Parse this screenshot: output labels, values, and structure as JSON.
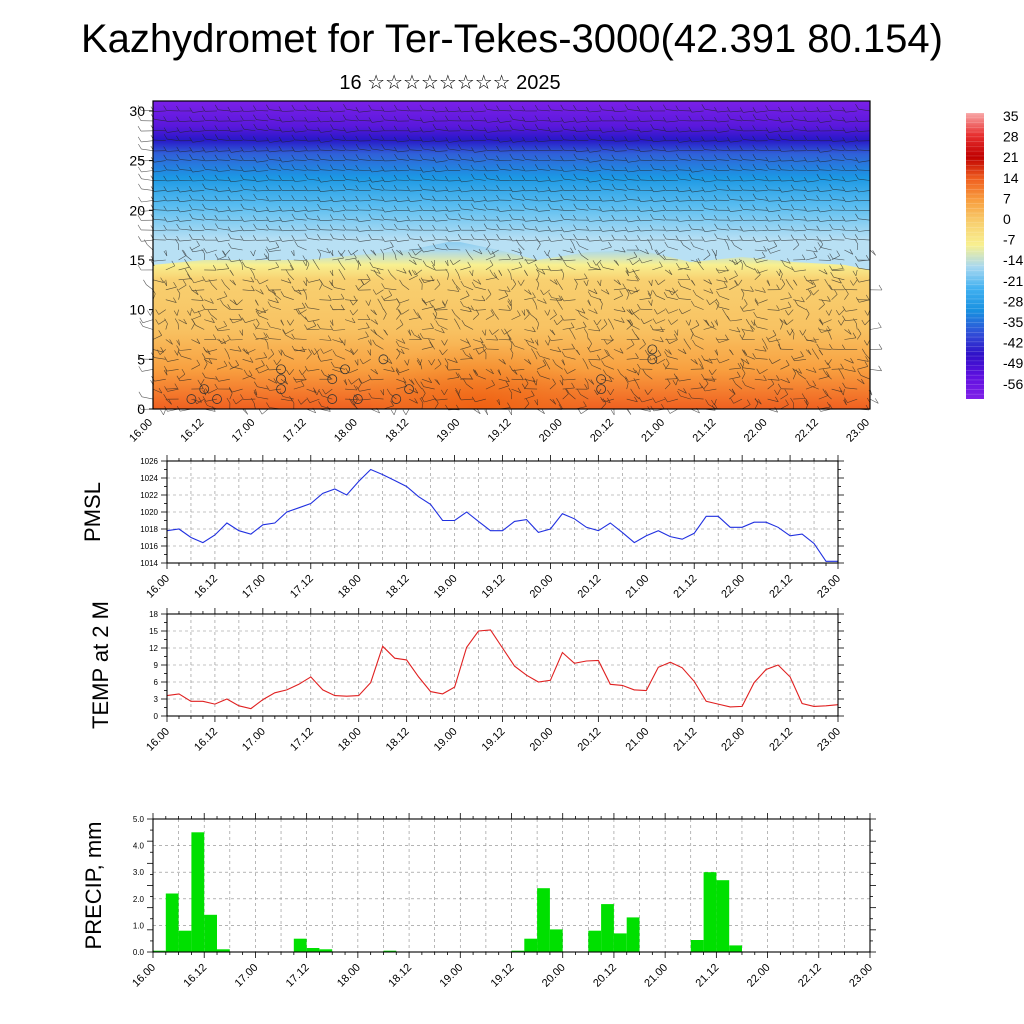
{
  "header": {
    "title": "Kazhydromet for Ter-Tekes-3000(42.391 80.154)",
    "subtitle": "16 ☆☆☆☆☆☆☆☆ 2025"
  },
  "colors": {
    "pmsl_line": "#2030e0",
    "temp_line": "#e02020",
    "precip_bar": "#00e000",
    "frame": "#000000",
    "grid": "#888888"
  },
  "chart_data": [
    {
      "type": "heatmap",
      "name": "cross-section",
      "title": "",
      "ylim": [
        0,
        31
      ],
      "yticks": [
        0,
        5,
        10,
        15,
        20,
        25,
        30
      ],
      "x_labels": [
        "16.00",
        "16.12",
        "17.00",
        "17.12",
        "18.00",
        "18.12",
        "19.00",
        "19.12",
        "20.00",
        "20.12",
        "21.00",
        "21.12",
        "22.00",
        "22.12",
        "23.00"
      ],
      "colorbar": {
        "labels": [
          "35",
          "28",
          "21",
          "14",
          "7",
          "0",
          "-7",
          "-14",
          "-21",
          "-28",
          "-35",
          "-42",
          "-49",
          "-56"
        ],
        "colors": [
          "#f8a8a8",
          "#e83030",
          "#c00000",
          "#f06020",
          "#f8a040",
          "#f8d070",
          "#f8f090",
          "#a8d8f0",
          "#40b0f0",
          "#1890e0",
          "#3050d8",
          "#3010c8",
          "#6010e0",
          "#8020e8"
        ]
      },
      "temperature_profile": {
        "heights": [
          0,
          4,
          8,
          13,
          16,
          19,
          22,
          24.5,
          26,
          28,
          31
        ],
        "values_c": [
          14,
          7,
          2,
          0,
          -14,
          -21,
          -28,
          -35,
          -49,
          -56,
          -56
        ]
      },
      "freezing_level": [
        {
          "x": 0,
          "y": 14.5
        },
        {
          "x": 4,
          "y": 15
        },
        {
          "x": 8,
          "y": 15
        },
        {
          "x": 12,
          "y": 15
        },
        {
          "x": 16,
          "y": 15.5
        },
        {
          "x": 20,
          "y": 16
        },
        {
          "x": 23,
          "y": 16.8
        },
        {
          "x": 24,
          "y": 16.8
        },
        {
          "x": 27,
          "y": 16
        },
        {
          "x": 30,
          "y": 15
        },
        {
          "x": 34,
          "y": 15.8
        },
        {
          "x": 38,
          "y": 16
        },
        {
          "x": 42,
          "y": 14.8
        },
        {
          "x": 46,
          "y": 15.3
        },
        {
          "x": 50,
          "y": 14.8
        },
        {
          "x": 54,
          "y": 14.5
        },
        {
          "x": 56,
          "y": 14
        }
      ]
    },
    {
      "type": "line",
      "name": "pmsl",
      "ylabel": "PMSL",
      "ylim": [
        1014,
        1026
      ],
      "yticks": [
        1014,
        1016,
        1018,
        1020,
        1022,
        1024,
        1026
      ],
      "x_labels": [
        "16.00",
        "16.12",
        "17.00",
        "17.12",
        "18.00",
        "18.12",
        "19.00",
        "19.12",
        "20.00",
        "20.12",
        "21.00",
        "21.12",
        "22.00",
        "22.12",
        "23.00"
      ],
      "series": [
        {
          "values": [
            1017.8,
            1018.0,
            1017.0,
            1016.4,
            1017.3,
            1018.7,
            1017.8,
            1017.4,
            1018.5,
            1018.7,
            1020.0,
            1020.5,
            1021.0,
            1022.2,
            1022.7,
            1022.0,
            1023.6,
            1025.0,
            1024.4,
            1023.7,
            1023.0,
            1021.8,
            1020.9,
            1019.0,
            1019.0,
            1020.0,
            1018.9,
            1017.8,
            1017.8,
            1018.9,
            1019.1,
            1017.6,
            1018.0,
            1019.8,
            1019.2,
            1018.2,
            1017.8,
            1018.7,
            1017.6,
            1016.4,
            1017.2,
            1017.8,
            1017.1,
            1016.8,
            1017.5,
            1019.5,
            1019.5,
            1018.2,
            1018.2,
            1018.8,
            1018.8,
            1018.2,
            1017.2,
            1017.4,
            1016.3,
            1014.2,
            1014.2
          ]
        }
      ]
    },
    {
      "type": "line",
      "name": "temp",
      "ylabel": "TEMP at 2 M",
      "ylim": [
        0,
        18
      ],
      "yticks": [
        0,
        3,
        6,
        9,
        12,
        15,
        18
      ],
      "x_labels": [
        "16.00",
        "16.12",
        "17.00",
        "17.12",
        "18.00",
        "18.12",
        "19.00",
        "19.12",
        "20.00",
        "20.12",
        "21.00",
        "21.12",
        "22.00",
        "22.12",
        "23.00"
      ],
      "series": [
        {
          "values": [
            3.6,
            3.9,
            2.6,
            2.6,
            2.1,
            3.0,
            1.8,
            1.3,
            2.9,
            4.1,
            4.6,
            5.6,
            6.9,
            4.6,
            3.6,
            3.5,
            3.6,
            5.9,
            12.3,
            10.2,
            9.9,
            6.9,
            4.3,
            3.9,
            5.1,
            12.1,
            15.0,
            15.2,
            12.0,
            8.8,
            7.2,
            6.0,
            6.3,
            11.2,
            9.3,
            9.7,
            9.8,
            5.6,
            5.4,
            4.6,
            4.5,
            8.6,
            9.5,
            8.5,
            6.1,
            2.6,
            2.1,
            1.6,
            1.7,
            5.9,
            8.2,
            9.0,
            6.9,
            2.2,
            1.7,
            1.8,
            2.0
          ]
        }
      ]
    },
    {
      "type": "bar",
      "name": "precip",
      "ylabel": "PRECIP, mm",
      "ylim": [
        0,
        5.0
      ],
      "ytick_labels": [
        "0.0",
        "1.0",
        "2.0",
        "3.0",
        "4.0",
        "5.0"
      ],
      "x_labels": [
        "16.00",
        "16.12",
        "17.00",
        "17.12",
        "18.00",
        "18.12",
        "19.00",
        "19.12",
        "20.00",
        "20.12",
        "21.00",
        "21.12",
        "22.00",
        "22.12",
        "23.00"
      ],
      "series": [
        {
          "values": [
            0.05,
            2.2,
            0.8,
            4.5,
            1.4,
            0.1,
            0,
            0,
            0,
            0,
            0,
            0.5,
            0.15,
            0.1,
            0,
            0,
            0,
            0,
            0.05,
            0,
            0,
            0,
            0,
            0,
            0,
            0,
            0,
            0,
            0.05,
            0.5,
            2.4,
            0.85,
            0,
            0,
            0.8,
            1.8,
            0.7,
            1.3,
            0,
            0,
            0,
            0,
            0.45,
            3.0,
            2.7,
            0.25,
            0,
            0,
            0,
            0,
            0,
            0,
            0,
            0,
            0,
            0
          ]
        }
      ]
    }
  ]
}
